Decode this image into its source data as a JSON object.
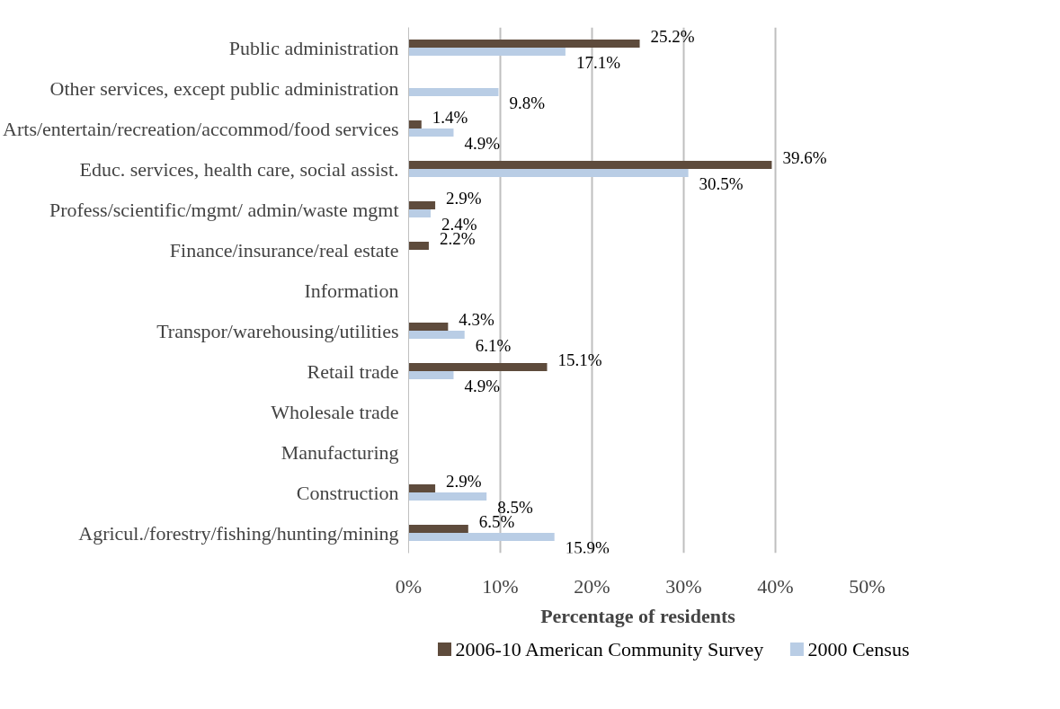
{
  "chart_data": {
    "type": "bar",
    "orientation": "horizontal",
    "xlabel": "Percentage of residents",
    "categories": [
      "Public administration",
      "Other services, except public administration",
      "Arts/entertain/recreation/accommod/food services",
      "Educ. services, health care, social assist.",
      "Profess/scientific/mgmt/ admin/waste mgmt",
      "Finance/insurance/real estate",
      "Information",
      "Transpor/warehousing/utilities",
      "Retail trade",
      "Wholesale trade",
      "Manufacturing",
      "Construction",
      "Agricul./forestry/fishing/hunting/mining"
    ],
    "series": [
      {
        "name": "2006-10 American Community Survey",
        "color": "#5e4b3c",
        "values": [
          25.2,
          null,
          1.4,
          39.6,
          2.9,
          2.2,
          null,
          4.3,
          15.1,
          null,
          null,
          2.9,
          6.5
        ],
        "value_labels": [
          "25.2%",
          null,
          "1.4%",
          "39.6%",
          "2.9%",
          "2.2%",
          null,
          "4.3%",
          "15.1%",
          null,
          null,
          "2.9%",
          "6.5%"
        ]
      },
      {
        "name": "2000 Census",
        "color": "#b9cde5",
        "values": [
          17.1,
          9.8,
          4.9,
          30.5,
          2.4,
          null,
          null,
          6.1,
          4.9,
          null,
          null,
          8.5,
          15.9
        ],
        "value_labels": [
          "17.1%",
          "9.8%",
          "4.9%",
          "30.5%",
          "2.4%",
          null,
          null,
          "6.1%",
          "4.9%",
          null,
          null,
          "8.5%",
          "15.9%"
        ]
      }
    ],
    "xlim": [
      0,
      50
    ],
    "xticks": [
      {
        "value": 0,
        "label": "0%"
      },
      {
        "value": 10,
        "label": "10%"
      },
      {
        "value": 20,
        "label": "20%"
      },
      {
        "value": 30,
        "label": "30%"
      },
      {
        "value": 40,
        "label": "40%"
      },
      {
        "value": 50,
        "label": "50%"
      }
    ],
    "grid": "x",
    "legend": "bottom"
  }
}
